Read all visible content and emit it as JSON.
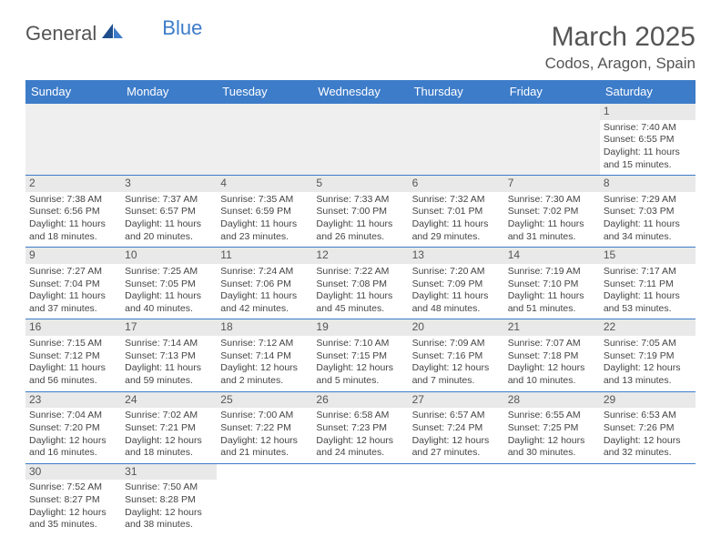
{
  "brand": {
    "part1": "General",
    "part2": "Blue"
  },
  "title": "March 2025",
  "location": "Codos, Aragon, Spain",
  "colors": {
    "accent": "#3d7cc9",
    "header_text": "#ffffff",
    "daynum_bg": "#e9e9e9",
    "empty_bg": "#efefef"
  },
  "weekdays": [
    "Sunday",
    "Monday",
    "Tuesday",
    "Wednesday",
    "Thursday",
    "Friday",
    "Saturday"
  ],
  "weeks": [
    [
      null,
      null,
      null,
      null,
      null,
      null,
      {
        "n": "1",
        "sr": "Sunrise: 7:40 AM",
        "ss": "Sunset: 6:55 PM",
        "d1": "Daylight: 11 hours",
        "d2": "and 15 minutes."
      }
    ],
    [
      {
        "n": "2",
        "sr": "Sunrise: 7:38 AM",
        "ss": "Sunset: 6:56 PM",
        "d1": "Daylight: 11 hours",
        "d2": "and 18 minutes."
      },
      {
        "n": "3",
        "sr": "Sunrise: 7:37 AM",
        "ss": "Sunset: 6:57 PM",
        "d1": "Daylight: 11 hours",
        "d2": "and 20 minutes."
      },
      {
        "n": "4",
        "sr": "Sunrise: 7:35 AM",
        "ss": "Sunset: 6:59 PM",
        "d1": "Daylight: 11 hours",
        "d2": "and 23 minutes."
      },
      {
        "n": "5",
        "sr": "Sunrise: 7:33 AM",
        "ss": "Sunset: 7:00 PM",
        "d1": "Daylight: 11 hours",
        "d2": "and 26 minutes."
      },
      {
        "n": "6",
        "sr": "Sunrise: 7:32 AM",
        "ss": "Sunset: 7:01 PM",
        "d1": "Daylight: 11 hours",
        "d2": "and 29 minutes."
      },
      {
        "n": "7",
        "sr": "Sunrise: 7:30 AM",
        "ss": "Sunset: 7:02 PM",
        "d1": "Daylight: 11 hours",
        "d2": "and 31 minutes."
      },
      {
        "n": "8",
        "sr": "Sunrise: 7:29 AM",
        "ss": "Sunset: 7:03 PM",
        "d1": "Daylight: 11 hours",
        "d2": "and 34 minutes."
      }
    ],
    [
      {
        "n": "9",
        "sr": "Sunrise: 7:27 AM",
        "ss": "Sunset: 7:04 PM",
        "d1": "Daylight: 11 hours",
        "d2": "and 37 minutes."
      },
      {
        "n": "10",
        "sr": "Sunrise: 7:25 AM",
        "ss": "Sunset: 7:05 PM",
        "d1": "Daylight: 11 hours",
        "d2": "and 40 minutes."
      },
      {
        "n": "11",
        "sr": "Sunrise: 7:24 AM",
        "ss": "Sunset: 7:06 PM",
        "d1": "Daylight: 11 hours",
        "d2": "and 42 minutes."
      },
      {
        "n": "12",
        "sr": "Sunrise: 7:22 AM",
        "ss": "Sunset: 7:08 PM",
        "d1": "Daylight: 11 hours",
        "d2": "and 45 minutes."
      },
      {
        "n": "13",
        "sr": "Sunrise: 7:20 AM",
        "ss": "Sunset: 7:09 PM",
        "d1": "Daylight: 11 hours",
        "d2": "and 48 minutes."
      },
      {
        "n": "14",
        "sr": "Sunrise: 7:19 AM",
        "ss": "Sunset: 7:10 PM",
        "d1": "Daylight: 11 hours",
        "d2": "and 51 minutes."
      },
      {
        "n": "15",
        "sr": "Sunrise: 7:17 AM",
        "ss": "Sunset: 7:11 PM",
        "d1": "Daylight: 11 hours",
        "d2": "and 53 minutes."
      }
    ],
    [
      {
        "n": "16",
        "sr": "Sunrise: 7:15 AM",
        "ss": "Sunset: 7:12 PM",
        "d1": "Daylight: 11 hours",
        "d2": "and 56 minutes."
      },
      {
        "n": "17",
        "sr": "Sunrise: 7:14 AM",
        "ss": "Sunset: 7:13 PM",
        "d1": "Daylight: 11 hours",
        "d2": "and 59 minutes."
      },
      {
        "n": "18",
        "sr": "Sunrise: 7:12 AM",
        "ss": "Sunset: 7:14 PM",
        "d1": "Daylight: 12 hours",
        "d2": "and 2 minutes."
      },
      {
        "n": "19",
        "sr": "Sunrise: 7:10 AM",
        "ss": "Sunset: 7:15 PM",
        "d1": "Daylight: 12 hours",
        "d2": "and 5 minutes."
      },
      {
        "n": "20",
        "sr": "Sunrise: 7:09 AM",
        "ss": "Sunset: 7:16 PM",
        "d1": "Daylight: 12 hours",
        "d2": "and 7 minutes."
      },
      {
        "n": "21",
        "sr": "Sunrise: 7:07 AM",
        "ss": "Sunset: 7:18 PM",
        "d1": "Daylight: 12 hours",
        "d2": "and 10 minutes."
      },
      {
        "n": "22",
        "sr": "Sunrise: 7:05 AM",
        "ss": "Sunset: 7:19 PM",
        "d1": "Daylight: 12 hours",
        "d2": "and 13 minutes."
      }
    ],
    [
      {
        "n": "23",
        "sr": "Sunrise: 7:04 AM",
        "ss": "Sunset: 7:20 PM",
        "d1": "Daylight: 12 hours",
        "d2": "and 16 minutes."
      },
      {
        "n": "24",
        "sr": "Sunrise: 7:02 AM",
        "ss": "Sunset: 7:21 PM",
        "d1": "Daylight: 12 hours",
        "d2": "and 18 minutes."
      },
      {
        "n": "25",
        "sr": "Sunrise: 7:00 AM",
        "ss": "Sunset: 7:22 PM",
        "d1": "Daylight: 12 hours",
        "d2": "and 21 minutes."
      },
      {
        "n": "26",
        "sr": "Sunrise: 6:58 AM",
        "ss": "Sunset: 7:23 PM",
        "d1": "Daylight: 12 hours",
        "d2": "and 24 minutes."
      },
      {
        "n": "27",
        "sr": "Sunrise: 6:57 AM",
        "ss": "Sunset: 7:24 PM",
        "d1": "Daylight: 12 hours",
        "d2": "and 27 minutes."
      },
      {
        "n": "28",
        "sr": "Sunrise: 6:55 AM",
        "ss": "Sunset: 7:25 PM",
        "d1": "Daylight: 12 hours",
        "d2": "and 30 minutes."
      },
      {
        "n": "29",
        "sr": "Sunrise: 6:53 AM",
        "ss": "Sunset: 7:26 PM",
        "d1": "Daylight: 12 hours",
        "d2": "and 32 minutes."
      }
    ],
    [
      {
        "n": "30",
        "sr": "Sunrise: 7:52 AM",
        "ss": "Sunset: 8:27 PM",
        "d1": "Daylight: 12 hours",
        "d2": "and 35 minutes."
      },
      {
        "n": "31",
        "sr": "Sunrise: 7:50 AM",
        "ss": "Sunset: 8:28 PM",
        "d1": "Daylight: 12 hours",
        "d2": "and 38 minutes."
      },
      null,
      null,
      null,
      null,
      null
    ]
  ]
}
